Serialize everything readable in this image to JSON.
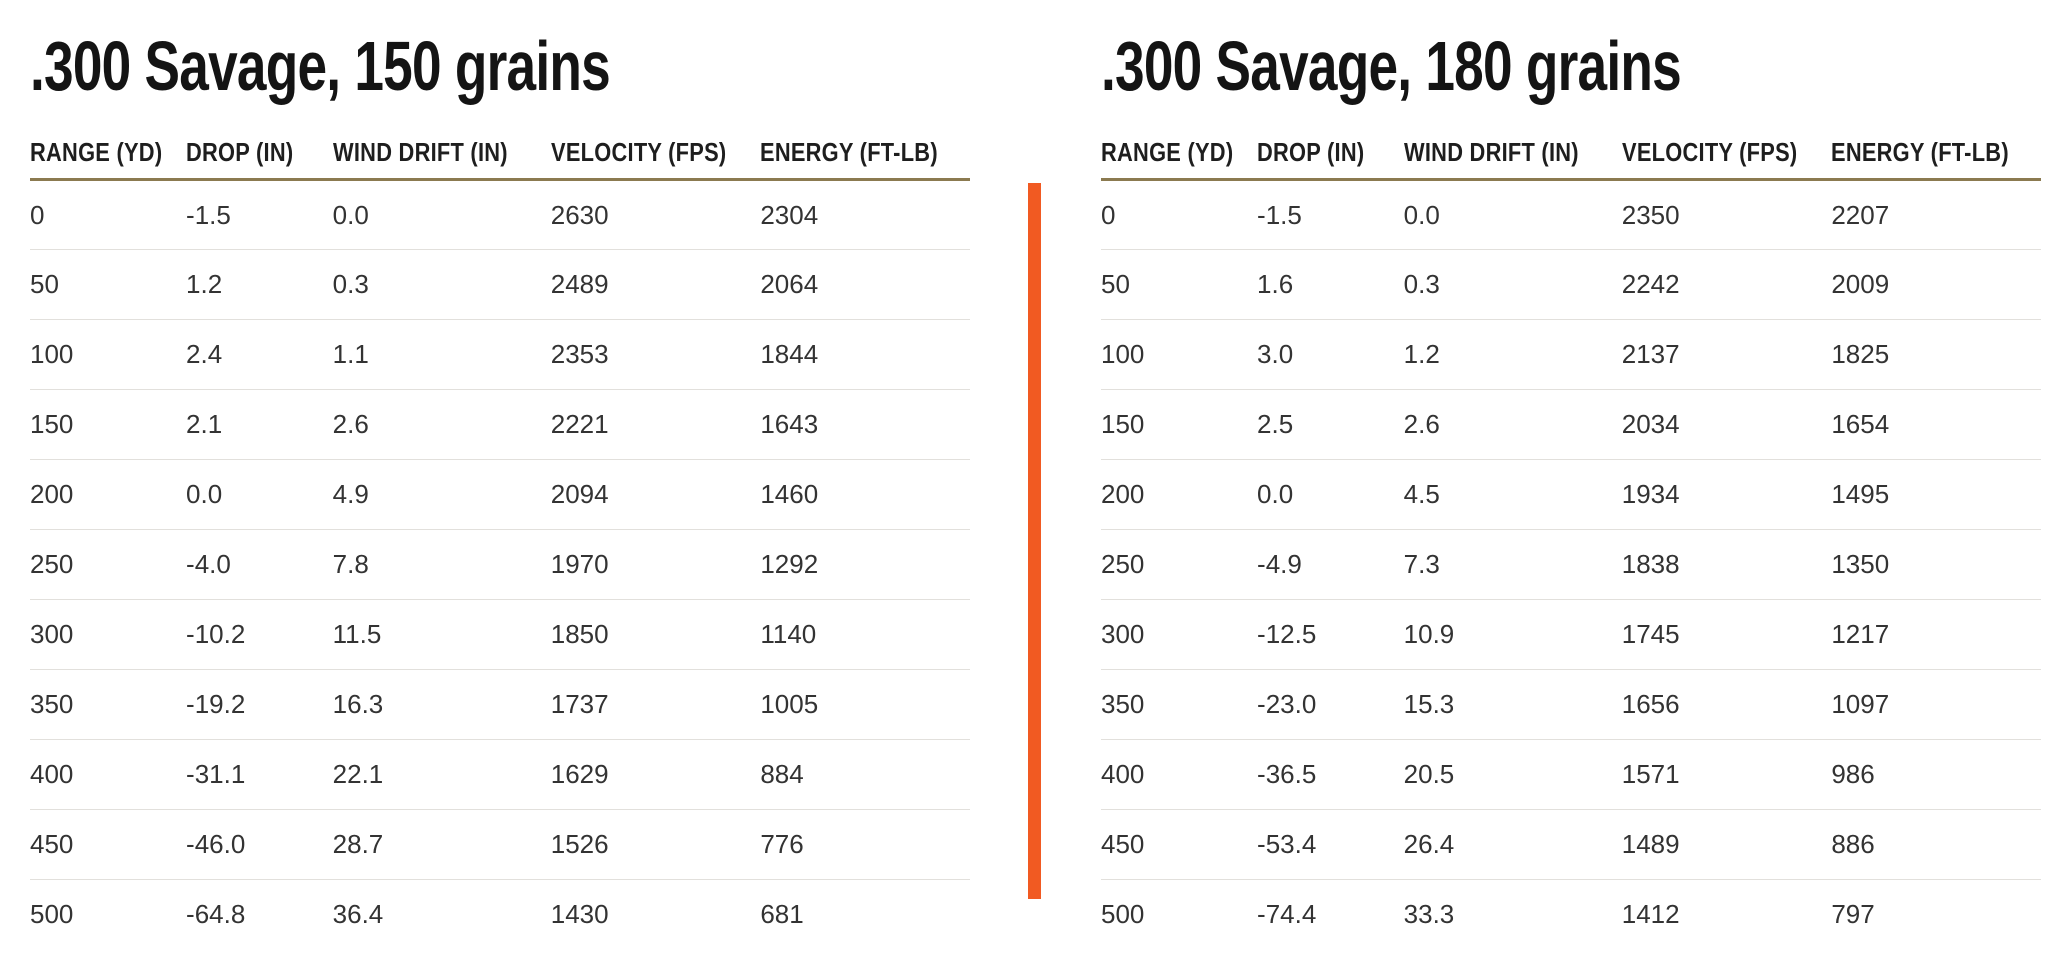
{
  "page": {
    "background_color": "#ffffff",
    "divider_color": "#f15a22",
    "header_underline_color": "#8b7a50",
    "row_line_color": "#e2e0dc"
  },
  "chart_data": [
    {
      "type": "table",
      "title": ".300 Savage, 150 grains",
      "columns": [
        "RANGE (YD)",
        "DROP (IN)",
        "WIND DRIFT (IN)",
        "VELOCITY (FPS)",
        "ENERGY (FT-LB)"
      ],
      "rows": [
        [
          "0",
          "-1.5",
          "0.0",
          "2630",
          "2304"
        ],
        [
          "50",
          "1.2",
          "0.3",
          "2489",
          "2064"
        ],
        [
          "100",
          "2.4",
          "1.1",
          "2353",
          "1844"
        ],
        [
          "150",
          "2.1",
          "2.6",
          "2221",
          "1643"
        ],
        [
          "200",
          "0.0",
          "4.9",
          "2094",
          "1460"
        ],
        [
          "250",
          "-4.0",
          "7.8",
          "1970",
          "1292"
        ],
        [
          "300",
          "-10.2",
          "11.5",
          "1850",
          "1140"
        ],
        [
          "350",
          "-19.2",
          "16.3",
          "1737",
          "1005"
        ],
        [
          "400",
          "-31.1",
          "22.1",
          "1629",
          "884"
        ],
        [
          "450",
          "-46.0",
          "28.7",
          "1526",
          "776"
        ],
        [
          "500",
          "-64.8",
          "36.4",
          "1430",
          "681"
        ]
      ]
    },
    {
      "type": "table",
      "title": ".300 Savage, 180 grains",
      "columns": [
        "RANGE (YD)",
        "DROP (IN)",
        "WIND DRIFT (IN)",
        "VELOCITY (FPS)",
        "ENERGY (FT-LB)"
      ],
      "rows": [
        [
          "0",
          "-1.5",
          "0.0",
          "2350",
          "2207"
        ],
        [
          "50",
          "1.6",
          "0.3",
          "2242",
          "2009"
        ],
        [
          "100",
          "3.0",
          "1.2",
          "2137",
          "1825"
        ],
        [
          "150",
          "2.5",
          "2.6",
          "2034",
          "1654"
        ],
        [
          "200",
          "0.0",
          "4.5",
          "1934",
          "1495"
        ],
        [
          "250",
          "-4.9",
          "7.3",
          "1838",
          "1350"
        ],
        [
          "300",
          "-12.5",
          "10.9",
          "1745",
          "1217"
        ],
        [
          "350",
          "-23.0",
          "15.3",
          "1656",
          "1097"
        ],
        [
          "400",
          "-36.5",
          "20.5",
          "1571",
          "986"
        ],
        [
          "450",
          "-53.4",
          "26.4",
          "1489",
          "886"
        ],
        [
          "500",
          "-74.4",
          "33.3",
          "1412",
          "797"
        ]
      ]
    }
  ]
}
